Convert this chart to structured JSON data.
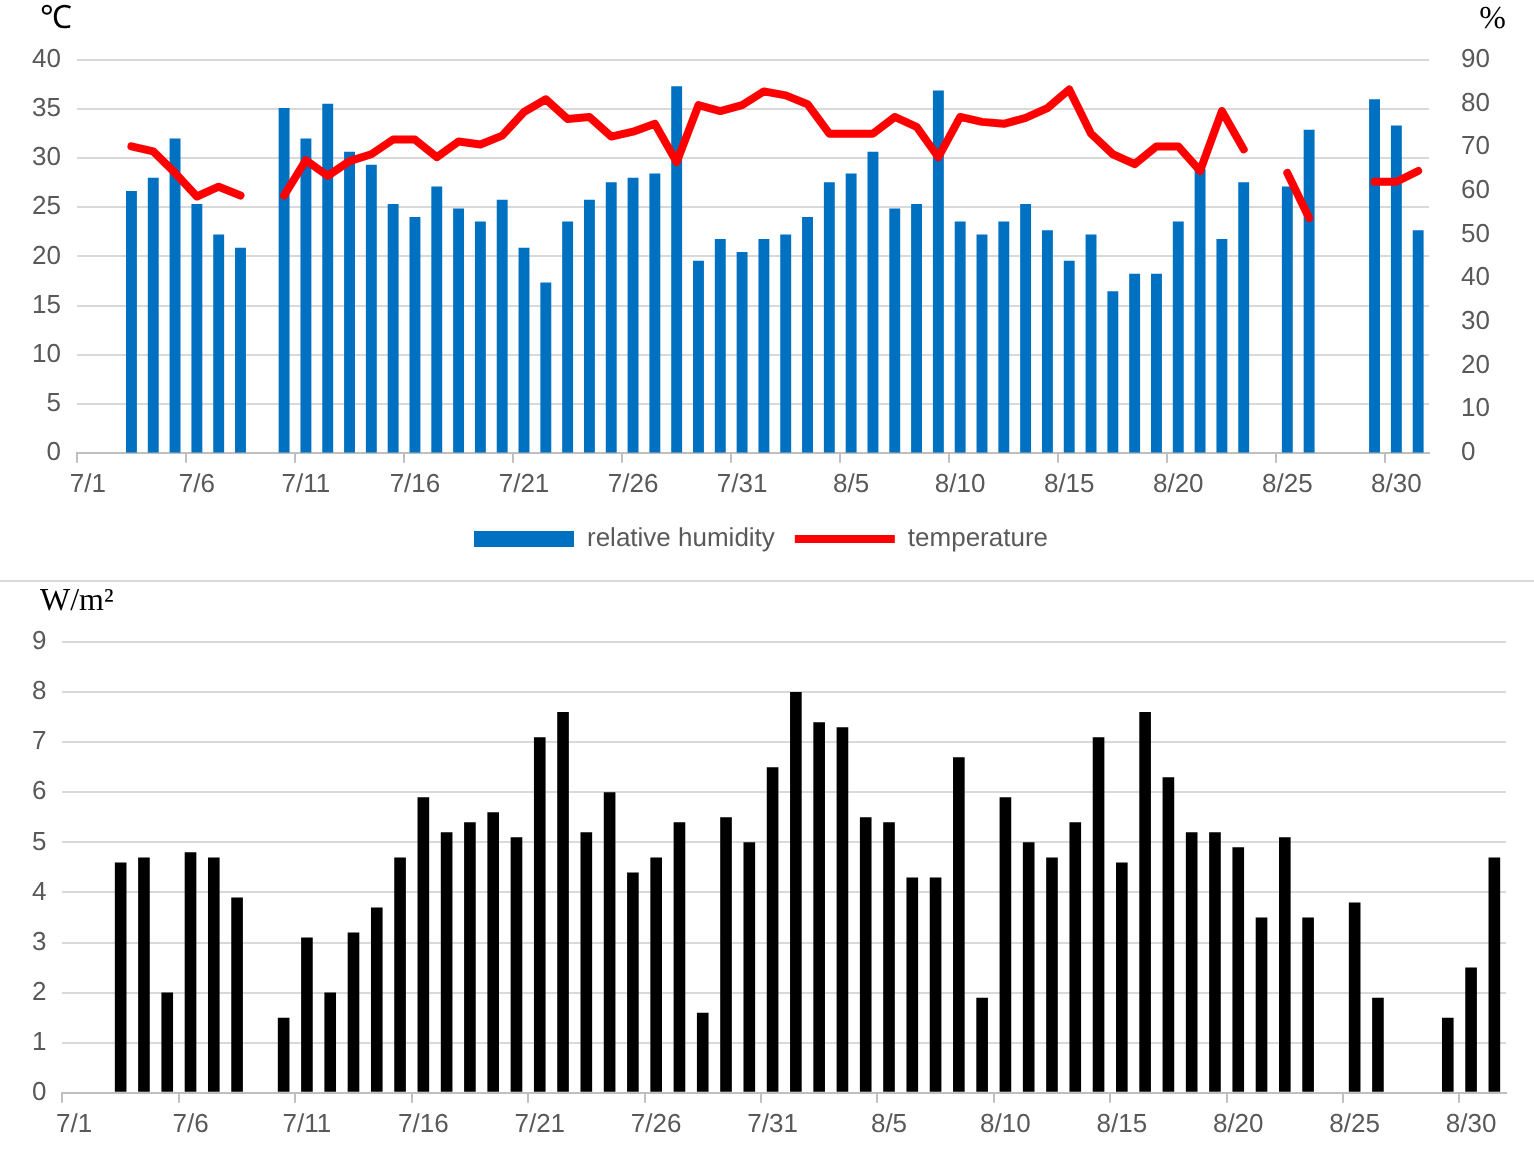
{
  "chart_data": [
    {
      "type": "bar",
      "ylabel": "℃",
      "y2label": "%",
      "categories": [
        "7/1",
        null,
        null,
        null,
        null,
        "7/6",
        null,
        null,
        null,
        null,
        "7/11",
        null,
        null,
        null,
        null,
        "7/16",
        null,
        null,
        null,
        null,
        "7/21",
        null,
        null,
        null,
        null,
        "7/26",
        null,
        null,
        null,
        null,
        "7/31",
        null,
        null,
        null,
        null,
        "8/5",
        null,
        null,
        null,
        null,
        "8/10",
        null,
        null,
        null,
        null,
        "8/15",
        null,
        null,
        null,
        null,
        "8/20",
        null,
        null,
        null,
        null,
        "8/25",
        null,
        null,
        null,
        null,
        "8/30",
        null
      ],
      "series": [
        {
          "name": "relative humidity",
          "type": "bar",
          "axis": "y2",
          "color": "#0070c0",
          "values": [
            null,
            null,
            60,
            63,
            72,
            57,
            50,
            47,
            null,
            79,
            72,
            80,
            69,
            66,
            57,
            54,
            61,
            56,
            53,
            58,
            47,
            39,
            53,
            58,
            62,
            63,
            64,
            84,
            44,
            49,
            46,
            49,
            50,
            54,
            62,
            64,
            69,
            56,
            57,
            83,
            53,
            50,
            53,
            57,
            51,
            44,
            50,
            37,
            41,
            41,
            53,
            65,
            49,
            62,
            null,
            61,
            74,
            null,
            null,
            81,
            75,
            51
          ]
        },
        {
          "name": "temperature",
          "type": "line",
          "color": "#ff0000",
          "values": [
            null,
            null,
            31.2,
            30.7,
            28.5,
            26.1,
            27.1,
            26.2,
            null,
            26.2,
            29.8,
            28.2,
            29.7,
            30.4,
            31.9,
            31.9,
            30.1,
            31.7,
            31.4,
            32.3,
            34.7,
            36.0,
            34.0,
            34.2,
            32.2,
            32.7,
            33.5,
            29.6,
            35.4,
            34.8,
            35.4,
            36.8,
            36.4,
            35.5,
            32.5,
            32.5,
            32.5,
            34.2,
            33.2,
            30.1,
            34.2,
            33.7,
            33.5,
            34.1,
            35.1,
            37.0,
            32.5,
            30.4,
            29.4,
            31.2,
            31.2,
            28.7,
            34.8,
            30.9,
            null,
            28.5,
            23.9,
            null,
            null,
            27.6,
            27.6,
            28.7
          ]
        }
      ],
      "ylim": [
        0,
        40
      ],
      "yticks": [
        0,
        5,
        10,
        15,
        20,
        25,
        30,
        35,
        40
      ],
      "y2lim": [
        0,
        90
      ],
      "y2ticks": [
        0,
        10,
        20,
        30,
        40,
        50,
        60,
        70,
        80,
        90
      ],
      "grid": "y",
      "legend": "bottom",
      "marker": "none",
      "line_style": "solid"
    },
    {
      "type": "bar",
      "ylabel": "W/m²",
      "categories": [
        "7/1",
        null,
        null,
        null,
        null,
        "7/6",
        null,
        null,
        null,
        null,
        "7/11",
        null,
        null,
        null,
        null,
        "7/16",
        null,
        null,
        null,
        null,
        "7/21",
        null,
        null,
        null,
        null,
        "7/26",
        null,
        null,
        null,
        null,
        "7/31",
        null,
        null,
        null,
        null,
        "8/5",
        null,
        null,
        null,
        null,
        "8/10",
        null,
        null,
        null,
        null,
        "8/15",
        null,
        null,
        null,
        null,
        "8/20",
        null,
        null,
        null,
        null,
        "8/25",
        null,
        null,
        null,
        null,
        "8/30",
        null
      ],
      "values": [
        null,
        null,
        4.6,
        4.7,
        2.0,
        4.8,
        4.7,
        3.9,
        null,
        1.5,
        3.1,
        2.0,
        3.2,
        3.7,
        4.7,
        5.9,
        5.2,
        5.4,
        5.6,
        5.1,
        7.1,
        7.6,
        5.2,
        6.0,
        4.4,
        4.7,
        5.4,
        1.6,
        5.5,
        5.0,
        6.5,
        8.0,
        7.4,
        7.3,
        5.5,
        5.4,
        4.3,
        4.3,
        6.7,
        1.9,
        5.9,
        5.0,
        4.7,
        5.4,
        7.1,
        4.6,
        7.6,
        6.3,
        5.2,
        5.2,
        4.9,
        3.5,
        5.1,
        3.5,
        null,
        3.8,
        1.9,
        null,
        null,
        1.5,
        2.5,
        4.7
      ],
      "color": "#000000",
      "ylim": [
        0,
        9
      ],
      "yticks": [
        0,
        1,
        2,
        3,
        4,
        5,
        6,
        7,
        8,
        9
      ],
      "grid": "y",
      "legend": false
    }
  ]
}
